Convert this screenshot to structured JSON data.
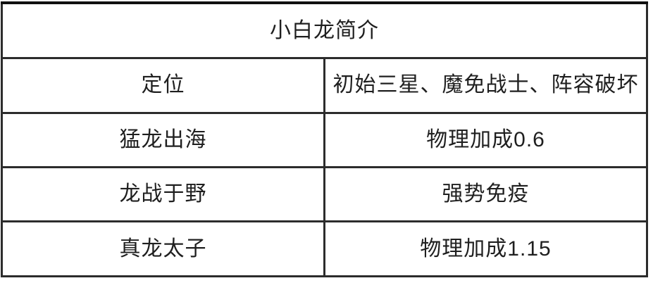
{
  "table": {
    "title": "小白龙简介",
    "rows": [
      {
        "label": "定位",
        "value": "初始三星、魔免战士、阵容破坏"
      },
      {
        "label": "猛龙出海",
        "value": "物理加成0.6"
      },
      {
        "label": "龙战于野",
        "value": "强势免疫"
      },
      {
        "label": "真龙太子",
        "value": "物理加成1.15"
      }
    ]
  },
  "colors": {
    "border": "#2c2c2c",
    "outer_border": "#101010",
    "text": "#1f1f1f",
    "background": "#ffffff"
  }
}
